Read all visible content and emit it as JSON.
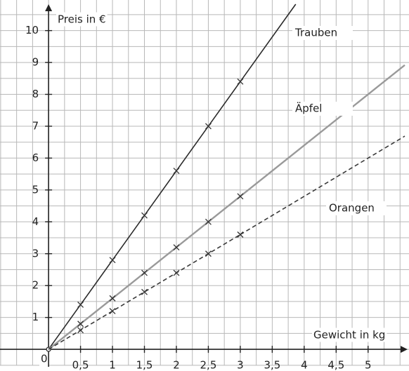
{
  "chart_data": {
    "type": "line",
    "y_label": "Preis in €",
    "x_label": "Gewicht in kg",
    "origin_label": "0",
    "xlim": [
      -0.76,
      5.64
    ],
    "ylim": [
      -0.68,
      10.96
    ],
    "xticks": [
      {
        "value": 0.5,
        "label": "0,5"
      },
      1,
      {
        "value": 1.5,
        "label": "1,5"
      },
      2,
      {
        "value": 2.5,
        "label": "2,5"
      },
      3,
      {
        "value": 3.5,
        "label": "3,5"
      },
      4,
      {
        "value": 4.5,
        "label": "4,5"
      },
      5
    ],
    "yticks": [
      1,
      2,
      3,
      4,
      5,
      6,
      7,
      8,
      9,
      10
    ],
    "grid": true,
    "x": [
      0,
      0.5,
      1,
      1.5,
      2,
      2.5,
      3
    ],
    "series": [
      {
        "name": "Trauben",
        "color": "#2a2a2a",
        "values": [
          0,
          1.4,
          2.8,
          4.2,
          5.6,
          7,
          8.4
        ]
      },
      {
        "name": "Äpfel",
        "color": "#9a9a9a",
        "values": [
          0,
          0.8,
          1.6,
          2.4,
          3.2,
          4,
          4.8
        ]
      },
      {
        "name": "Orangen",
        "color": "#3a3a3a",
        "dashed": true,
        "values": [
          0,
          0.6,
          1.2,
          1.8,
          2.4,
          3,
          3.6
        ]
      }
    ]
  }
}
